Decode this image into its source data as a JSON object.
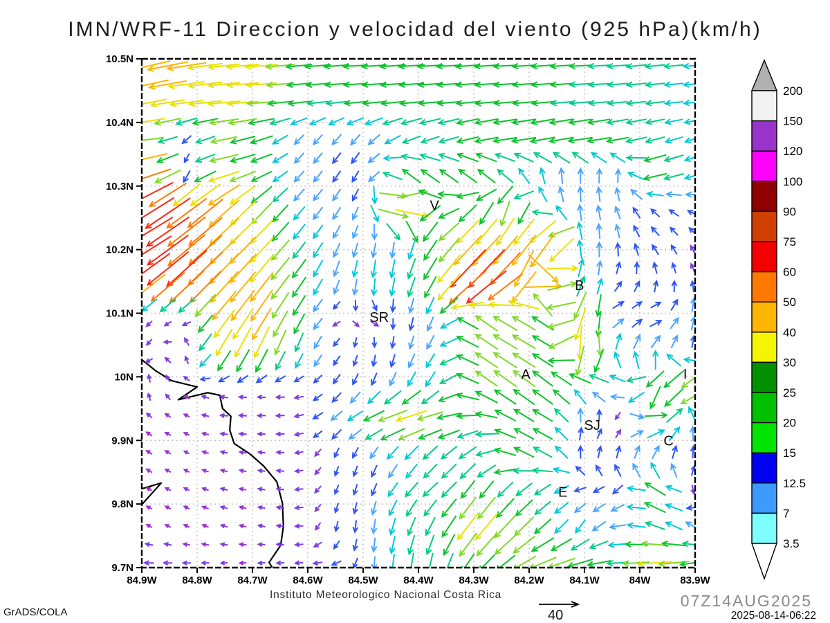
{
  "title": "IMN/WRF-11 Direccion y velocidad del viento (925 hPa)(km/h)",
  "footer": {
    "institute": "Instituto Meteorologico Nacional Costa Rica",
    "credit": "GrADS/COLA",
    "run_label": "07Z14AUG2025",
    "timestamp": "2025-08-14-06:22",
    "ref_arrow_value": "40"
  },
  "axes": {
    "x_ticks": [
      "84.9W",
      "84.8W",
      "84.7W",
      "84.6W",
      "84.5W",
      "84.4W",
      "84.3W",
      "84.2W",
      "84.1W",
      "84W",
      "83.9W"
    ],
    "y_ticks": [
      "10.5N",
      "10.4N",
      "10.3N",
      "10.2N",
      "10.1N",
      "10N",
      "9.9N",
      "9.8N",
      "9.7N"
    ]
  },
  "colorbar": {
    "labels": [
      "200",
      "150",
      "120",
      "100",
      "90",
      "75",
      "60",
      "50",
      "40",
      "30",
      "25",
      "20",
      "15",
      "12.5",
      "7",
      "3.5"
    ],
    "colors": [
      "#f2f2f2",
      "#9933cc",
      "#ff00ff",
      "#8f0000",
      "#d04000",
      "#f50000",
      "#ff7800",
      "#ffb600",
      "#f5f500",
      "#009000",
      "#00c000",
      "#00e400",
      "#0000f0",
      "#3f9aff",
      "#7dffff"
    ],
    "over_color": "#b0b0b0",
    "under_color": "#ffffff"
  },
  "stations": [
    {
      "label": "V",
      "lon": -84.371,
      "lat": 10.27
    },
    {
      "label": "B",
      "lon": -84.109,
      "lat": 10.144
    },
    {
      "label": "SR",
      "lon": -84.471,
      "lat": 10.094
    },
    {
      "label": "A",
      "lon": -84.206,
      "lat": 10.004
    },
    {
      "label": "I",
      "lon": -83.918,
      "lat": 10.005
    },
    {
      "label": "SJ",
      "lon": -84.086,
      "lat": 9.924
    },
    {
      "label": "C",
      "lon": -83.948,
      "lat": 9.9
    },
    {
      "label": "E",
      "lon": -84.139,
      "lat": 9.819
    }
  ],
  "coastline": [
    [
      [
        -84.9,
        10.027
      ],
      [
        -84.874,
        10.009
      ],
      [
        -84.846,
        9.994
      ],
      [
        -84.8,
        9.984
      ],
      [
        -84.834,
        9.964
      ],
      [
        -84.781,
        9.975
      ],
      [
        -84.759,
        9.971
      ],
      [
        -84.754,
        9.95
      ],
      [
        -84.739,
        9.938
      ],
      [
        -84.741,
        9.916
      ],
      [
        -84.733,
        9.895
      ],
      [
        -84.705,
        9.879
      ],
      [
        -84.68,
        9.86
      ],
      [
        -84.656,
        9.835
      ],
      [
        -84.646,
        9.802
      ],
      [
        -84.644,
        9.765
      ],
      [
        -84.649,
        9.735
      ],
      [
        -84.67,
        9.708
      ],
      [
        -84.664,
        9.7
      ]
    ],
    [
      [
        -84.9,
        9.824
      ],
      [
        -84.865,
        9.833
      ],
      [
        -84.9,
        9.799
      ]
    ]
  ],
  "chart_data": {
    "type": "vector_field",
    "title": "IMN/WRF-11 Direccion y velocidad del viento (925 hPa)(km/h)",
    "level": "925 hPa",
    "units": "km/h",
    "lon_range": [
      -84.9,
      -83.9
    ],
    "lat_range": [
      9.7,
      10.5
    ],
    "grid_on": true,
    "reference_vector_kmh": 40,
    "speed_levels": [
      3.5,
      7,
      12.5,
      15,
      20,
      25,
      30,
      40,
      50,
      60,
      75,
      90,
      100,
      120,
      150,
      200
    ],
    "arrow_speed_colors": [
      {
        "max": 5,
        "color": "#9a30d6"
      },
      {
        "max": 8,
        "color": "#7e3ae3"
      },
      {
        "max": 12,
        "color": "#2e55f2"
      },
      {
        "max": 15,
        "color": "#49a5ff"
      },
      {
        "max": 18,
        "color": "#00c9d7"
      },
      {
        "max": 21,
        "color": "#00cd85"
      },
      {
        "max": 26,
        "color": "#0cc32d"
      },
      {
        "max": 31,
        "color": "#7fda25"
      },
      {
        "max": 37,
        "color": "#e9e200"
      },
      {
        "max": 44,
        "color": "#ffb400"
      },
      {
        "max": 52,
        "color": "#ff7a00"
      },
      {
        "max": 62,
        "color": "#ff2613"
      },
      {
        "max": 999,
        "color": "#ff119b"
      }
    ],
    "wind_grid": {
      "cols": 16,
      "rows": 15,
      "format": "[direction_deg_math_0E_90N, speed_kmh]",
      "vectors": [
        [
          [
            193,
            44
          ],
          [
            189,
            40
          ],
          [
            186,
            31
          ],
          [
            184,
            34
          ],
          [
            185,
            26
          ],
          [
            184,
            25
          ],
          [
            183,
            24
          ],
          [
            184,
            26
          ],
          [
            183,
            25
          ],
          [
            184,
            24
          ],
          [
            183,
            23
          ],
          [
            184,
            22
          ],
          [
            183,
            21
          ],
          [
            184,
            20
          ],
          [
            186,
            19
          ],
          [
            184,
            18
          ]
        ],
        [
          [
            191,
            37
          ],
          [
            187,
            34
          ],
          [
            185,
            33
          ],
          [
            184,
            30
          ],
          [
            186,
            22
          ],
          [
            185,
            20
          ],
          [
            184,
            22
          ],
          [
            185,
            23
          ],
          [
            184,
            23
          ],
          [
            185,
            22
          ],
          [
            184,
            22
          ],
          [
            185,
            21
          ],
          [
            184,
            20
          ],
          [
            185,
            19
          ],
          [
            186,
            18
          ],
          [
            185,
            17
          ]
        ],
        [
          [
            186,
            28
          ],
          [
            222,
            10
          ],
          [
            191,
            26
          ],
          [
            196,
            24
          ],
          [
            224,
            12
          ],
          [
            229,
            12
          ],
          [
            226,
            13
          ],
          [
            206,
            18
          ],
          [
            201,
            18
          ],
          [
            196,
            22
          ],
          [
            191,
            24
          ],
          [
            193,
            25
          ],
          [
            191,
            24
          ],
          [
            193,
            22
          ],
          [
            195,
            18
          ],
          [
            197,
            15
          ]
        ],
        [
          [
            196,
            45
          ],
          [
            278,
            6
          ],
          [
            194,
            32
          ],
          [
            201,
            22
          ],
          [
            227,
            13
          ],
          [
            234,
            12
          ],
          [
            241,
            11
          ],
          [
            151,
            20
          ],
          [
            141,
            22
          ],
          [
            136,
            22
          ],
          [
            131,
            18
          ],
          [
            96,
            15
          ],
          [
            88,
            14
          ],
          [
            85,
            12
          ],
          [
            196,
            25
          ],
          [
            198,
            16
          ]
        ],
        [
          [
            212,
            62
          ],
          [
            216,
            52
          ],
          [
            221,
            42
          ],
          [
            226,
            30
          ],
          [
            229,
            16
          ],
          [
            233,
            13
          ],
          [
            251,
            12
          ],
          [
            356,
            42
          ],
          [
            186,
            20
          ],
          [
            231,
            22
          ],
          [
            261,
            25
          ],
          [
            121,
            14
          ],
          [
            92,
            14
          ],
          [
            115,
            12
          ],
          [
            140,
            10
          ],
          [
            160,
            10
          ]
        ],
        [
          [
            211,
            55
          ],
          [
            219,
            48
          ],
          [
            223,
            40
          ],
          [
            226,
            35
          ],
          [
            231,
            20
          ],
          [
            241,
            14
          ],
          [
            256,
            12
          ],
          [
            266,
            14
          ],
          [
            231,
            25
          ],
          [
            226,
            40
          ],
          [
            231,
            35
          ],
          [
            226,
            45
          ],
          [
            88,
            15
          ],
          [
            100,
            12
          ],
          [
            130,
            10
          ],
          [
            120,
            8
          ]
        ],
        [
          [
            218,
            52
          ],
          [
            223,
            60
          ],
          [
            227,
            45
          ],
          [
            230,
            38
          ],
          [
            233,
            25
          ],
          [
            251,
            15
          ],
          [
            263,
            18
          ],
          [
            256,
            20
          ],
          [
            236,
            28
          ],
          [
            226,
            68
          ],
          [
            226,
            45
          ],
          [
            2,
            40
          ],
          [
            85,
            14
          ],
          [
            60,
            10
          ],
          [
            95,
            10
          ],
          [
            110,
            8
          ]
        ],
        [
          [
            220,
            6
          ],
          [
            215,
            6
          ],
          [
            231,
            35
          ],
          [
            236,
            40
          ],
          [
            241,
            25
          ],
          [
            200,
            6
          ],
          [
            45,
            6
          ],
          [
            265,
            10
          ],
          [
            246,
            15
          ],
          [
            141,
            25
          ],
          [
            151,
            28
          ],
          [
            146,
            25
          ],
          [
            251,
            35
          ],
          [
            30,
            10
          ],
          [
            10,
            10
          ],
          [
            75,
            14
          ]
        ],
        [
          [
            230,
            6
          ],
          [
            90,
            6
          ],
          [
            241,
            30
          ],
          [
            246,
            35
          ],
          [
            251,
            20
          ],
          [
            231,
            10
          ],
          [
            271,
            8
          ],
          [
            256,
            12
          ],
          [
            236,
            15
          ],
          [
            146,
            26
          ],
          [
            149,
            28
          ],
          [
            151,
            22
          ],
          [
            275,
            35
          ],
          [
            85,
            15
          ],
          [
            60,
            15
          ],
          [
            80,
            10
          ]
        ],
        [
          [
            90,
            6
          ],
          [
            150,
            5
          ],
          [
            170,
            6
          ],
          [
            175,
            6
          ],
          [
            180,
            7
          ],
          [
            230,
            10
          ],
          [
            246,
            12
          ],
          [
            241,
            15
          ],
          [
            236,
            18
          ],
          [
            146,
            25
          ],
          [
            143,
            28
          ],
          [
            141,
            25
          ],
          [
            139,
            20
          ],
          [
            170,
            15
          ],
          [
            226,
            25
          ],
          [
            221,
            32
          ]
        ],
        [
          [
            150,
            5
          ],
          [
            155,
            4
          ],
          [
            175,
            6
          ],
          [
            180,
            6
          ],
          [
            185,
            7
          ],
          [
            221,
            12
          ],
          [
            206,
            20
          ],
          [
            196,
            38
          ],
          [
            191,
            25
          ],
          [
            186,
            20
          ],
          [
            149,
            22
          ],
          [
            151,
            22
          ],
          [
            61,
            10
          ],
          [
            266,
            5
          ],
          [
            11,
            22
          ],
          [
            95,
            15
          ]
        ],
        [
          [
            148,
            5
          ],
          [
            152,
            4
          ],
          [
            168,
            5
          ],
          [
            172,
            5
          ],
          [
            178,
            6
          ],
          [
            251,
            8
          ],
          [
            246,
            10
          ],
          [
            236,
            15
          ],
          [
            226,
            18
          ],
          [
            216,
            20
          ],
          [
            156,
            22
          ],
          [
            151,
            20
          ],
          [
            81,
            10
          ],
          [
            76,
            12
          ],
          [
            71,
            12
          ],
          [
            86,
            10
          ]
        ],
        [
          [
            150,
            4
          ],
          [
            154,
            4
          ],
          [
            165,
            5
          ],
          [
            170,
            5
          ],
          [
            175,
            6
          ],
          [
            246,
            8
          ],
          [
            256,
            10
          ],
          [
            231,
            18
          ],
          [
            221,
            20
          ],
          [
            236,
            22
          ],
          [
            226,
            20
          ],
          [
            216,
            18
          ],
          [
            200,
            10
          ],
          [
            225,
            12
          ],
          [
            150,
            25
          ],
          [
            280,
            7
          ]
        ],
        [
          [
            152,
            4
          ],
          [
            156,
            4
          ],
          [
            162,
            5
          ],
          [
            168,
            5
          ],
          [
            172,
            6
          ],
          [
            256,
            8
          ],
          [
            266,
            12
          ],
          [
            251,
            18
          ],
          [
            241,
            20
          ],
          [
            231,
            38
          ],
          [
            226,
            30
          ],
          [
            221,
            20
          ],
          [
            236,
            15
          ],
          [
            185,
            15
          ],
          [
            160,
            20
          ],
          [
            150,
            15
          ]
        ],
        [
          [
            178,
            8
          ],
          [
            180,
            6
          ],
          [
            182,
            5
          ],
          [
            185,
            5
          ],
          [
            183,
            6
          ],
          [
            190,
            8
          ],
          [
            266,
            10
          ],
          [
            261,
            20
          ],
          [
            256,
            20
          ],
          [
            231,
            22
          ],
          [
            216,
            25
          ],
          [
            201,
            30
          ],
          [
            196,
            25
          ],
          [
            182,
            20
          ],
          [
            184,
            35
          ],
          [
            188,
            25
          ]
        ]
      ]
    }
  }
}
